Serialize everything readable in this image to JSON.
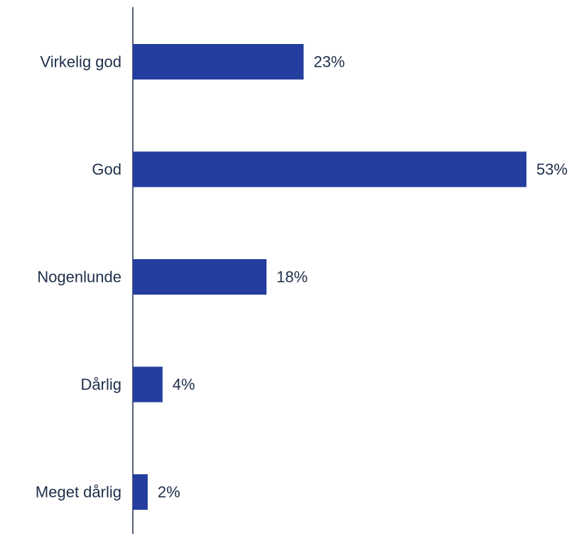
{
  "chart_data": {
    "type": "bar",
    "orientation": "horizontal",
    "categories": [
      "Virkelig god",
      "God",
      "Nogenlunde",
      "Dårlig",
      "Meget dårlig"
    ],
    "values": [
      23,
      53,
      18,
      4,
      2
    ],
    "value_labels": [
      "23%",
      "53%",
      "18%",
      "4%",
      "2%"
    ],
    "unit": "%",
    "title": "",
    "xlabel": "",
    "ylabel": "",
    "xlim": [
      0,
      53
    ],
    "grid": false,
    "legend": "none"
  },
  "colors": {
    "bar": "#233e9e",
    "axis": "#1f2f4a",
    "text": "#1f2f4a",
    "background": "#ffffff"
  }
}
